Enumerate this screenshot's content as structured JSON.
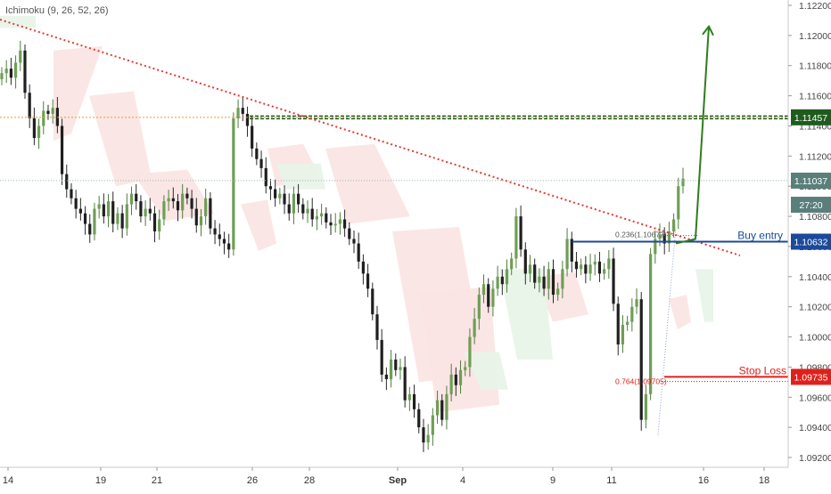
{
  "indicator": {
    "label": "Ichimoku (9, 26, 52, 26)"
  },
  "chart_data": {
    "type": "candlestick",
    "indicator": "Ichimoku (9, 26, 52, 26)",
    "y_axis_ticks": [
      "1.12200",
      "1.12000",
      "1.11800",
      "1.11600",
      "1.11400",
      "1.11200",
      "1.11000",
      "1.10800",
      "1.10600",
      "1.10400",
      "1.10200",
      "1.10000",
      "1.09800",
      "1.09600",
      "1.09400",
      "1.09200"
    ],
    "y_axis_tick_values": [
      1.122,
      1.12,
      1.118,
      1.116,
      1.114,
      1.112,
      1.11,
      1.108,
      1.106,
      1.104,
      1.102,
      1.1,
      1.098,
      1.096,
      1.094,
      1.092
    ],
    "x_axis_ticks": [
      "14",
      "19",
      "21",
      "26",
      "28",
      "Sep",
      "4",
      "9",
      "11",
      "16",
      "18"
    ],
    "price_labels": [
      {
        "text": "1.11457",
        "value": 1.11457,
        "color": "#1e5c1e"
      },
      {
        "text": "1.11037",
        "value": 1.11037,
        "color": "#5a7f7a"
      },
      {
        "text": "27:20",
        "value": 1.10877,
        "color": "#5a7f7a"
      },
      {
        "text": "1.10632",
        "value": 1.10632,
        "color": "#1a4a99"
      },
      {
        "text": "1.09735",
        "value": 1.09735,
        "color": "#e0201b"
      }
    ],
    "annotations": {
      "buy_entry": {
        "text": "Buy entry",
        "value": 1.10632,
        "color": "#1a4a99"
      },
      "stop_loss": {
        "text": "Stop Loss",
        "value": 1.09735,
        "color": "#e0201b"
      },
      "fib_236": {
        "text": "0.236(1.10673)",
        "value": 1.10673
      },
      "fib_764": {
        "text": "0.764(1.09705)",
        "value": 1.09705
      },
      "resistance": {
        "value": 1.11457,
        "color": "#1e5c1e"
      },
      "target_arrow": {
        "from": 1.1065,
        "to": 1.1206,
        "color": "#2e7d1e"
      }
    },
    "series_close": [
      1.1175,
      1.1178,
      1.1172,
      1.1182,
      1.119,
      1.1162,
      1.1145,
      1.1132,
      1.114,
      1.115,
      1.1148,
      1.1152,
      1.114,
      1.1108,
      1.1098,
      1.1092,
      1.1085,
      1.1082,
      1.1075,
      1.1068,
      1.1085,
      1.1088,
      1.108,
      1.109,
      1.1075,
      1.1082,
      1.1072,
      1.1088,
      1.1095,
      1.109,
      1.108,
      1.1085,
      1.1082,
      1.107,
      1.1078,
      1.109,
      1.1092,
      1.109,
      1.1084,
      1.1095,
      1.1092,
      1.1085,
      1.1074,
      1.108,
      1.1092,
      1.1072,
      1.1068,
      1.1065,
      1.1062,
      1.1058,
      1.1145,
      1.1152,
      1.1148,
      1.114,
      1.1125,
      1.1118,
      1.1112,
      1.11,
      1.1098,
      1.1092,
      1.1095,
      1.1088,
      1.1082,
      1.1095,
      1.1088,
      1.1082,
      1.1085,
      1.1078,
      1.108,
      1.1082,
      1.1076,
      1.1074,
      1.1075,
      1.1078,
      1.1072,
      1.1065,
      1.1062,
      1.105,
      1.1042,
      1.1032,
      1.1015,
      1.0998,
      1.0975,
      1.0972,
      1.0985,
      1.0978,
      1.098,
      1.0958,
      1.0962,
      1.0952,
      1.094,
      1.093,
      1.0935,
      1.0948,
      1.0958,
      1.0945,
      1.0962,
      1.0975,
      1.0968,
      1.0978,
      1.098,
      1.1,
      1.1012,
      1.1028,
      1.1035,
      1.102,
      1.1032,
      1.104,
      1.1035,
      1.1045,
      1.1052,
      1.108,
      1.1058,
      1.1042,
      1.1048,
      1.1036,
      1.104,
      1.1032,
      1.1045,
      1.1028,
      1.1032,
      1.1045,
      1.1065,
      1.105,
      1.1045,
      1.1048,
      1.1042,
      1.1048,
      1.105,
      1.1042,
      1.1045,
      1.1052,
      1.1022,
      1.0995,
      1.1008,
      1.101,
      1.102,
      1.1025,
      1.0945,
      1.0962,
      1.1055,
      1.1065,
      1.1068,
      1.1062,
      1.107,
      1.1078,
      1.11,
      1.1105
    ]
  }
}
